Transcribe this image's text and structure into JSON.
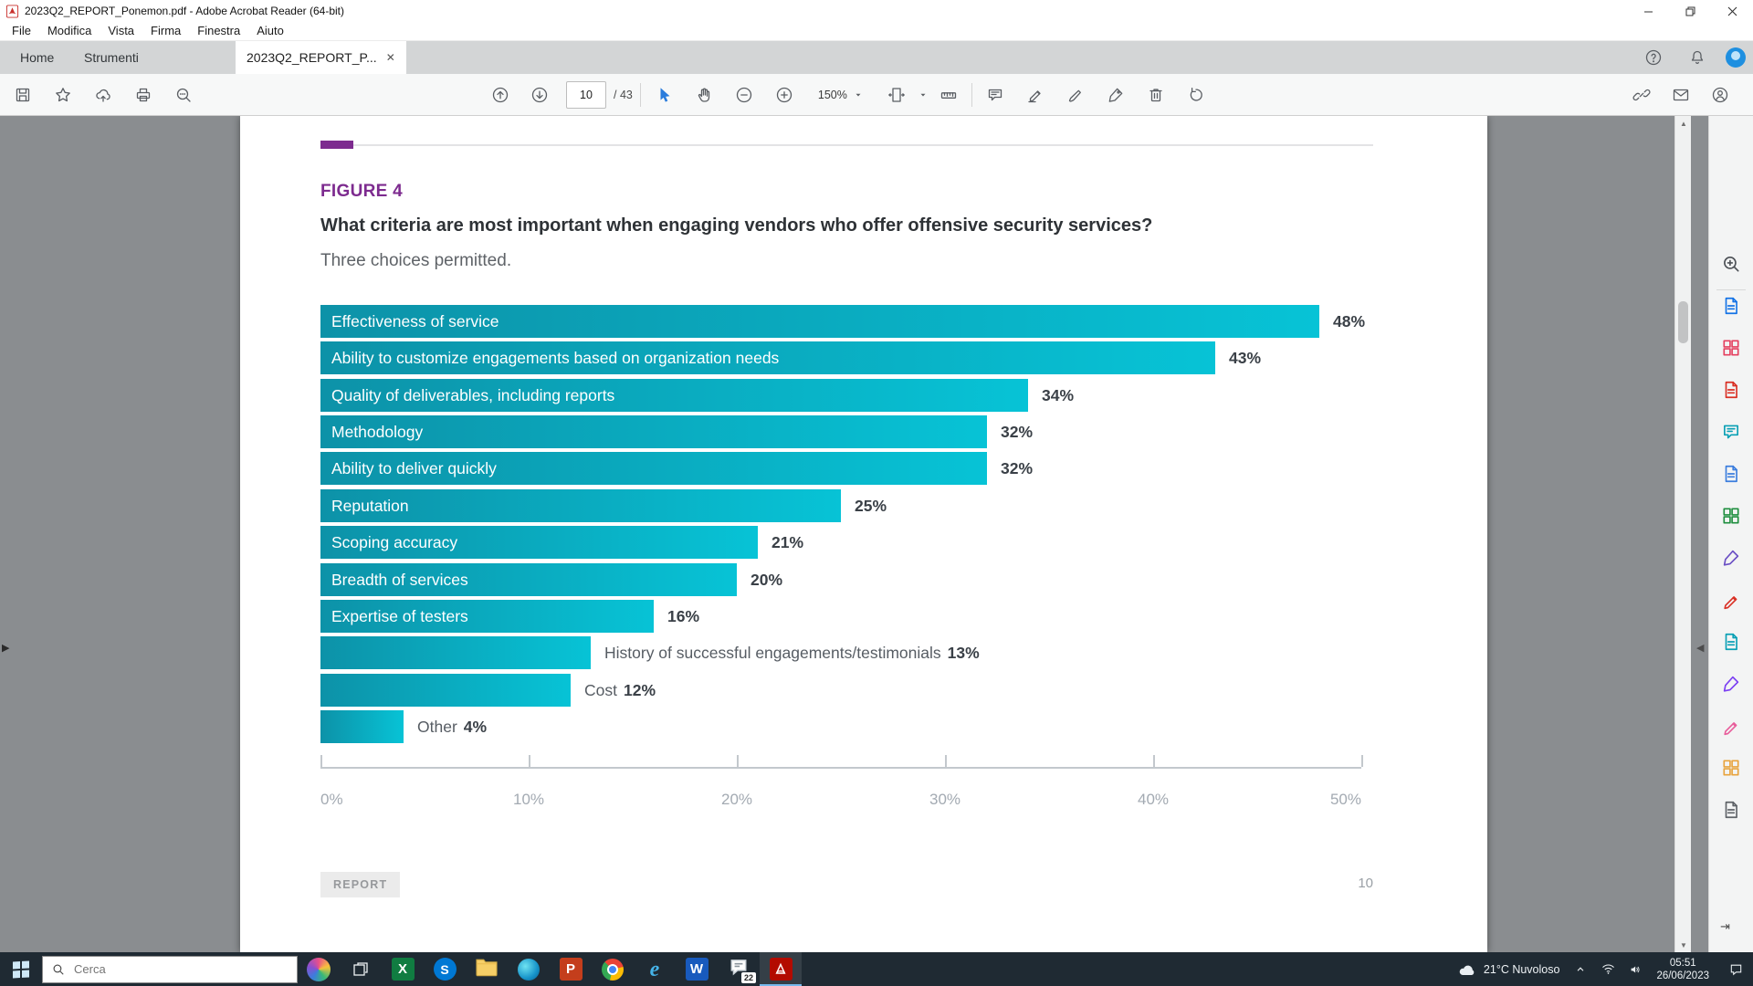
{
  "window": {
    "title": "2023Q2_REPORT_Ponemon.pdf - Adobe Acrobat Reader (64-bit)",
    "menu_items": [
      "File",
      "Modifica",
      "Vista",
      "Firma",
      "Finestra",
      "Aiuto"
    ],
    "tabs": [
      {
        "label": "Home"
      },
      {
        "label": "Strumenti"
      },
      {
        "label": "2023Q2_REPORT_P...",
        "active": true
      }
    ],
    "caption_icons": [
      "minimize",
      "restore",
      "close"
    ]
  },
  "tabbar_right_icons": [
    "help",
    "bell",
    "avatar"
  ],
  "toolbar": {
    "page_current": "10",
    "page_total": "/ 43",
    "zoom_level": "150%",
    "left_icons": [
      "save",
      "star",
      "share-upload",
      "print",
      "find"
    ],
    "nav_icons": [
      "page-up",
      "page-down"
    ],
    "select_icons": [
      "cursor",
      "hand",
      "zoom-out",
      "zoom-in"
    ],
    "view_icons": [
      "page-fit",
      "measure"
    ],
    "annot_icons": [
      "comment",
      "highlight",
      "draw",
      "fill-sign",
      "delete",
      "rotate-left"
    ],
    "right_icons": [
      "link",
      "mail",
      "profile"
    ]
  },
  "page": {
    "figure_label": "FIGURE 4",
    "question": "What criteria are most important when engaging vendors who offer offensive security services?",
    "note": "Three choices permitted.",
    "footer_badge": "REPORT",
    "footer_page_number": "10"
  },
  "chart_data": {
    "type": "bar",
    "orientation": "horizontal",
    "title": "What criteria are most important when engaging vendors who offer offensive security services?",
    "subtitle": "Three choices permitted.",
    "xlim": [
      0,
      50
    ],
    "x_ticks": [
      "0%",
      "10%",
      "20%",
      "30%",
      "40%",
      "50%"
    ],
    "grid": false,
    "bar_color_gradient": [
      "#0d92a8",
      "#07c3d6"
    ],
    "items": [
      {
        "label": "Effectiveness of service",
        "value": 48,
        "pct_label": "48%",
        "label_position": "inside"
      },
      {
        "label": "Ability to customize engagements based on organization needs",
        "value": 43,
        "pct_label": "43%",
        "label_position": "inside"
      },
      {
        "label": "Quality of deliverables, including reports",
        "value": 34,
        "pct_label": "34%",
        "label_position": "inside"
      },
      {
        "label": "Methodology",
        "value": 32,
        "pct_label": "32%",
        "label_position": "inside"
      },
      {
        "label": "Ability to deliver quickly",
        "value": 32,
        "pct_label": "32%",
        "label_position": "inside"
      },
      {
        "label": "Reputation",
        "value": 25,
        "pct_label": "25%",
        "label_position": "inside"
      },
      {
        "label": "Scoping accuracy",
        "value": 21,
        "pct_label": "21%",
        "label_position": "inside"
      },
      {
        "label": "Breadth of services",
        "value": 20,
        "pct_label": "20%",
        "label_position": "inside"
      },
      {
        "label": "Expertise of testers",
        "value": 16,
        "pct_label": "16%",
        "label_position": "inside"
      },
      {
        "label": "History of successful engagements/testimonials",
        "value": 13,
        "pct_label": "13%",
        "label_position": "outside"
      },
      {
        "label": "Cost",
        "value": 12,
        "pct_label": "12%",
        "label_position": "outside"
      },
      {
        "label": "Other",
        "value": 4,
        "pct_label": "4%",
        "label_position": "outside"
      }
    ]
  },
  "side_panel": {
    "tools": [
      {
        "name": "search-zoom",
        "glyph": "magnifier",
        "color": "#4d5156"
      },
      {
        "name": "export-pdf",
        "glyph": "doc",
        "color": "#1473e6"
      },
      {
        "name": "combine-files",
        "glyph": "grid",
        "color": "#e4405f"
      },
      {
        "name": "create-pdf",
        "glyph": "doc",
        "color": "#d93025"
      },
      {
        "name": "comment-tool",
        "glyph": "bubble",
        "color": "#0aa0b5"
      },
      {
        "name": "share-doc",
        "glyph": "doc",
        "color": "#3b7ddd"
      },
      {
        "name": "export-sheet",
        "glyph": "grid",
        "color": "#1e8e3e"
      },
      {
        "name": "send-for-signature",
        "glyph": "pen",
        "color": "#6a4fc4"
      },
      {
        "name": "edit-pdf",
        "glyph": "pencil",
        "color": "#d93025"
      },
      {
        "name": "organize-pages",
        "glyph": "doc",
        "color": "#0aa0b5"
      },
      {
        "name": "request-signatures",
        "glyph": "pen",
        "color": "#7b3ff2"
      },
      {
        "name": "fill-and-sign",
        "glyph": "pencil",
        "color": "#e85d9b"
      },
      {
        "name": "copy-files",
        "glyph": "grid",
        "color": "#e8a33d"
      },
      {
        "name": "more-tools",
        "glyph": "doc",
        "color": "#5f6368"
      }
    ]
  },
  "taskbar": {
    "search_placeholder": "Cerca",
    "weather_label": "21°C Nuvoloso",
    "clock_time": "05:51",
    "clock_date": "26/06/2023",
    "apps": [
      {
        "name": "excel",
        "kind": "letter",
        "letter": "X",
        "bg": "#107c41"
      },
      {
        "name": "skype",
        "kind": "circle-letter",
        "letter": "S",
        "bg": "#0078d4"
      },
      {
        "name": "file-explorer",
        "kind": "folder"
      },
      {
        "name": "edge-sphere",
        "kind": "sphere"
      },
      {
        "name": "powerpoint",
        "kind": "letter",
        "letter": "P",
        "bg": "#c43e1c"
      },
      {
        "name": "chrome",
        "kind": "chrome"
      },
      {
        "name": "edge",
        "kind": "edge-e"
      },
      {
        "name": "word",
        "kind": "letter",
        "letter": "W",
        "bg": "#185abd"
      },
      {
        "name": "chat",
        "kind": "chat",
        "badge": "22"
      },
      {
        "name": "acrobat",
        "kind": "acrobat",
        "active": true
      }
    ]
  }
}
